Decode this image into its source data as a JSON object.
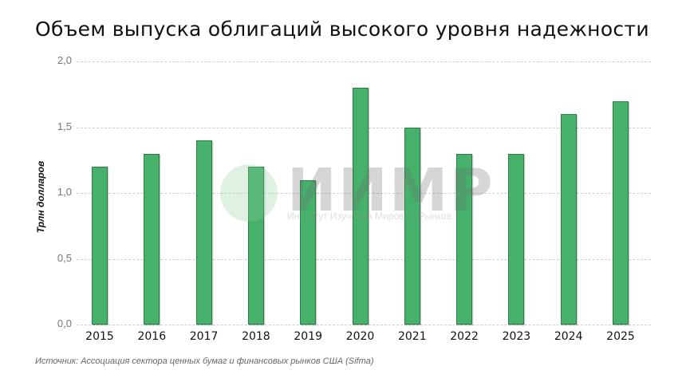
{
  "title": "Объем выпуска облигаций высокого уровня надежности",
  "watermark": {
    "logo": "ИИМР",
    "subtitle": "Институт Изучения Мировых Рынков"
  },
  "source": "Источник: Ассоциация сектора ценных бумаг и финансовых рынков США (Sifma)",
  "colors": {
    "bar": "#45b16a",
    "bar_border": "#2f7a47",
    "grid": "#cfcfcf"
  },
  "chart_data": {
    "type": "bar",
    "title": "Объем выпуска облигаций высокого уровня надежности",
    "xlabel": "",
    "ylabel": "Трлн долларов",
    "categories": [
      "2015",
      "2016",
      "2017",
      "2018",
      "2019",
      "2020",
      "2021",
      "2022",
      "2023",
      "2024",
      "2025"
    ],
    "values": [
      1.2,
      1.3,
      1.4,
      1.2,
      1.1,
      1.8,
      1.5,
      1.3,
      1.3,
      1.6,
      1.7
    ],
    "ylim": [
      0,
      2.0
    ],
    "yticks": [
      "0,0",
      "0,5",
      "1,0",
      "1,5",
      "2,0"
    ],
    "grid": true,
    "legend": null
  }
}
